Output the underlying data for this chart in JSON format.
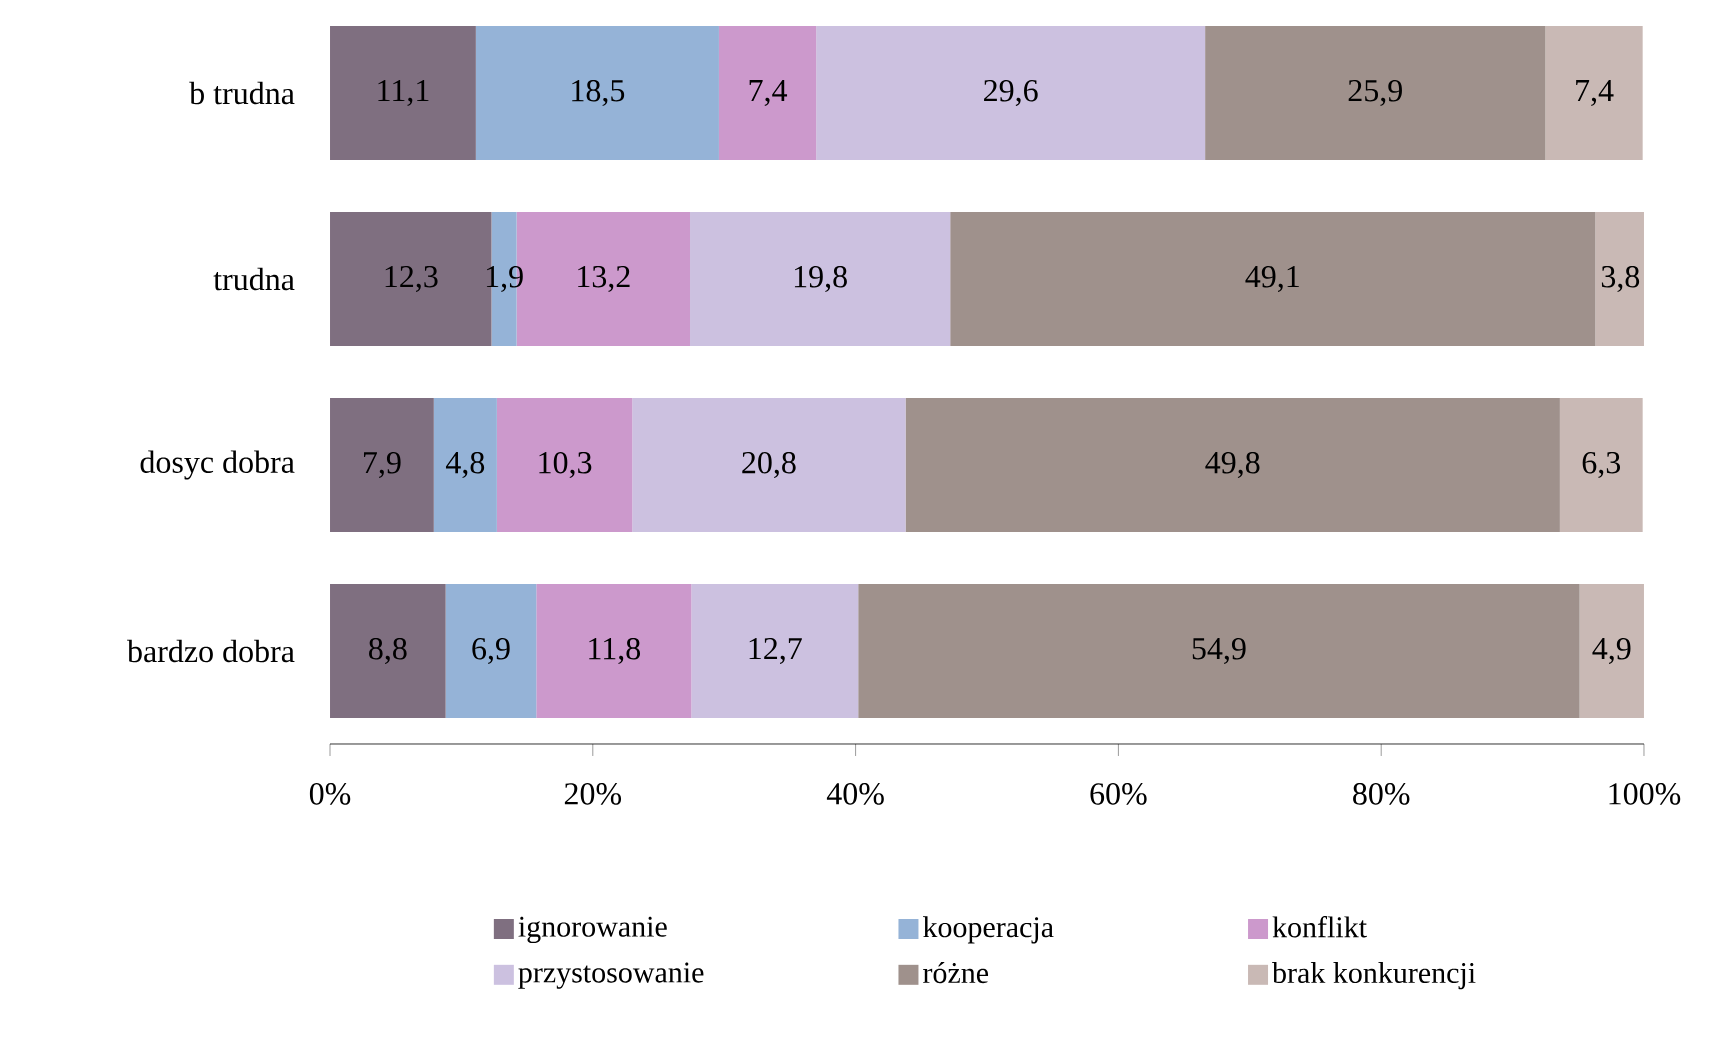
{
  "chart_data": {
    "type": "bar",
    "orientation": "horizontal",
    "stacked": true,
    "categories": [
      "b trudna",
      "trudna",
      "dosyc dobra",
      "bardzo dobra"
    ],
    "series": [
      {
        "name": "ignorowanie",
        "color": "#7f6f80",
        "values": [
          11.1,
          12.3,
          7.9,
          8.8
        ],
        "value_labels": [
          "11,1",
          "12,3",
          "7,9",
          "8,8"
        ]
      },
      {
        "name": "kooperacja",
        "color": "#95b3d7",
        "values": [
          18.5,
          1.9,
          4.8,
          6.9
        ],
        "value_labels": [
          "18,5",
          "1,9",
          "4,8",
          "6,9"
        ]
      },
      {
        "name": "konflikt",
        "color": "#cc99cc",
        "values": [
          7.4,
          13.2,
          10.3,
          11.8
        ],
        "value_labels": [
          "7,4",
          "13,2",
          "10,3",
          "11,8"
        ]
      },
      {
        "name": "przystosowanie",
        "color": "#ccc1e0",
        "values": [
          29.6,
          19.8,
          20.8,
          12.7
        ],
        "value_labels": [
          "29,6",
          "19,8",
          "20,8",
          "12,7"
        ]
      },
      {
        "name": "różne",
        "color": "#9f918c",
        "values": [
          25.9,
          49.1,
          49.8,
          54.9
        ],
        "value_labels": [
          "25,9",
          "49,1",
          "49,8",
          "54,9"
        ]
      },
      {
        "name": "brak konkurencji",
        "color": "#c9b9b5",
        "values": [
          7.4,
          3.8,
          6.3,
          4.9
        ],
        "value_labels": [
          "7,4",
          "3,8",
          "6,3",
          "4,9"
        ]
      }
    ],
    "xlim": [
      0,
      100
    ],
    "xticks": [
      {
        "value": 0,
        "label": "0%"
      },
      {
        "value": 20,
        "label": "20%"
      },
      {
        "value": 40,
        "label": "40%"
      },
      {
        "value": 60,
        "label": "60%"
      },
      {
        "value": 80,
        "label": "80%"
      },
      {
        "value": 100,
        "label": "100%"
      }
    ],
    "grid": false,
    "legend": "bottom"
  }
}
